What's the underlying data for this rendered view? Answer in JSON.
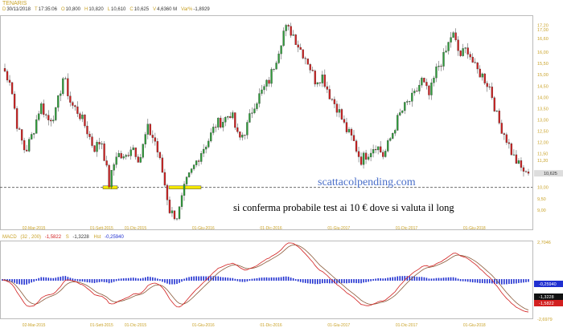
{
  "header": {
    "symbol": "TENARIS",
    "fields": [
      {
        "key": "D",
        "value": "30/11/2018"
      },
      {
        "key": "T",
        "value": "17:35:06"
      },
      {
        "key": "O",
        "value": "10,800"
      },
      {
        "key": "H",
        "value": "10,820"
      },
      {
        "key": "L",
        "value": "10,610"
      },
      {
        "key": "C",
        "value": "10,625"
      },
      {
        "key": "V",
        "value": "4,6360 M"
      },
      {
        "key": "Var%",
        "value": "-1,8929"
      }
    ]
  },
  "annotations": {
    "watermark": "scattacolpending.com",
    "note": "si conferma probabile test ai 10 € dove si valuta il long"
  },
  "colors": {
    "up": "#2e9e3a",
    "down": "#d21f1f",
    "axis": "#c9a227",
    "macd": "#d21f1f",
    "signal": "#8a5a3a",
    "histogram": "#1f2fd0",
    "highlight": "#f3e600"
  },
  "chart_data": [
    {
      "type": "candlestick",
      "title": "TENARIS",
      "y_ticks": [
        "17,20",
        "17,00",
        "16,60",
        "16,00",
        "15,50",
        "15,00",
        "14,50",
        "14,00",
        "13,50",
        "13,00",
        "12,50",
        "12,00",
        "11,50",
        "11,20",
        "10,00",
        "9,50",
        "9,00"
      ],
      "ylim": [
        8.5,
        17.5
      ],
      "last_price_label": "10,625",
      "last_price": 10.625,
      "support_level": 10.0,
      "x_labels": [
        "02-Mar-2015",
        "01-Sett-2015",
        "01-Dic-2015",
        "01-Giu-2016",
        "01-Dic-2016",
        "01-Giu-2017",
        "01-Dic-2017",
        "01-Giu-2018"
      ],
      "x_label_months": [
        "2015-03",
        "2015-09",
        "2015-12",
        "2016-06",
        "2016-12",
        "2017-06",
        "2017-12",
        "2018-06"
      ],
      "approx_closes": [
        15.29,
        14.76,
        12.62,
        11.56,
        12.44,
        13.69,
        12.98,
        13.33,
        14.94,
        13.69,
        13.33,
        12.62,
        11.73,
        12.09,
        10.13,
        11.56,
        11.2,
        11.91,
        11.2,
        12.62,
        12.09,
        10.67,
        8.89,
        8.71,
        10.13,
        10.84,
        11.56,
        12.09,
        12.8,
        12.98,
        13.33,
        12.09,
        12.62,
        13.69,
        14.22,
        14.76,
        15.83,
        17.07,
        16.89,
        16.18,
        15.65,
        14.76,
        14.94,
        14.05,
        13.51,
        12.62,
        12.09,
        11.2,
        11.56,
        11.91,
        11.38,
        12.27,
        13.16,
        13.69,
        14.05,
        14.76,
        14.05,
        15.29,
        15.83,
        16.89,
        15.83,
        16.18,
        15.29,
        14.94,
        14.4,
        12.98,
        12.27,
        11.38,
        10.84,
        10.63
      ]
    },
    {
      "type": "line",
      "title": "MACD",
      "params": "(32 , 200)",
      "macd_label": "-1,5822",
      "signal_key": "S",
      "signal_label": "-1,3228",
      "hist_key": "Hst",
      "hist_label": "-0,25940",
      "ylim": [
        -2.6979,
        2.7046
      ],
      "y_ticks": [
        "2,7046",
        "-2,6979"
      ]
    }
  ]
}
